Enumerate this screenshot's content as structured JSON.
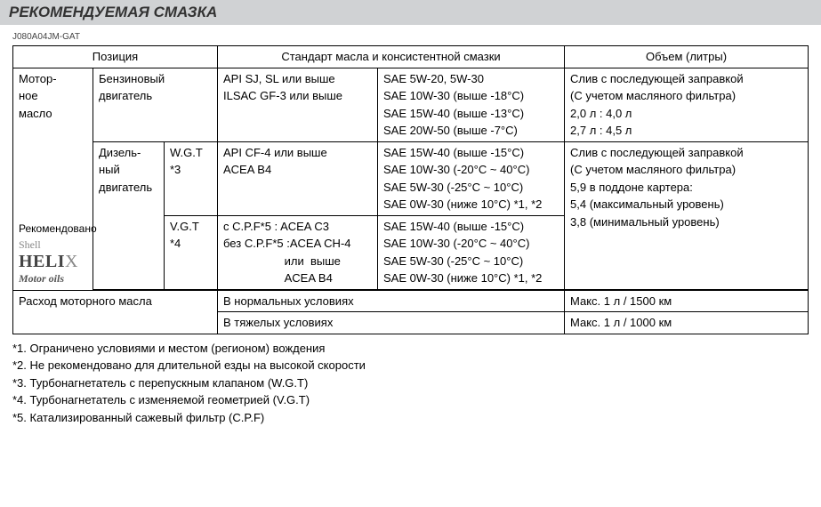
{
  "header": "РЕКОМЕНДУЕМАЯ СМАЗКА",
  "code": "J080A04JM-GAT",
  "columns": {
    "position": "Позиция",
    "standard": "Стандарт масла и консистентной смазки",
    "volume": "Объем (литры)"
  },
  "rows": {
    "motor_oil_label": "Мотор-\nное\nмасло",
    "petrol_engine": "Бензиновый\nдвигатель",
    "petrol_std": "API SJ, SL или выше\nILSAC GF-3 или выше",
    "petrol_sae": "SAE 5W-20, 5W-30\nSAE 10W-30 (выше -18°C)\nSAE 15W-40 (выше -13°C)\nSAE 20W-50 (выше -7°C)",
    "petrol_vol": "Слив с последующей заправкой\n(С учетом масляного фильтра)\n2,0 л : 4,0 л\n2,7 л : 4,5 л",
    "diesel_engine": "Дизель-\nный\nдвигатель",
    "wgt_label": "W.G.T *3",
    "wgt_std": "API CF-4 или выше\nACEA B4",
    "wgt_sae": "SAE 15W-40 (выше -15°C)\nSAE 10W-30 (-20°C ~ 40°C)\nSAE  5W-30 (-25°C ~ 10°C)\nSAE 0W-30 (ниже 10°C) *1, *2",
    "diesel_vol": "Слив с последующей заправкой\n(С учетом масляного фильтра)\n5,9 в поддоне картера:\n5,4  (максимальный уровень)\n3,8  (минимальный уровень)",
    "vgt_label": "V.G.T *4",
    "vgt_std": "с C.P.F*5 : ACEA C3\nбез C.P.F*5 :ACEA CH-4\n                   или  выше\n                   ACEA B4",
    "vgt_sae": "SAE 15W-40 (выше -15°C)\nSAE 10W-30 (-20°C ~ 40°C)\nSAE  5W-30 (-25°C ~ 10°C)\nSAE 0W-30 (ниже 10°C) *1, *2",
    "recommended": "Рекомендовано",
    "consumption_label": "Расход моторного масла",
    "normal_cond": "В нормальных условиях",
    "normal_vol": "Макс. 1 л / 1500 км",
    "hard_cond": "В тяжелых условиях",
    "hard_vol": "Макс. 1 л / 1000 км"
  },
  "logo": {
    "shell": "Shell",
    "helix": "HELI",
    "helix_x": "X",
    "motoroils": "Motor oils"
  },
  "footnotes": [
    "*1. Ограничено условиями и местом (регионом) вождения",
    "*2. Не рекомендовано для длительной езды на высокой скорости",
    "*3. Турбонагнетатель с перепускным клапаном (W.G.T)",
    "*4. Турбонагнетатель с изменяемой геометрией  (V.G.T)",
    "*5. Катализированный сажевый фильтр (C.P.F)"
  ],
  "style": {
    "header_bg": "#d0d2d4",
    "border_color": "#000000",
    "font_size_base": 13,
    "font_size_header": 17,
    "font_size_code": 10,
    "helix_font_size": 20
  }
}
